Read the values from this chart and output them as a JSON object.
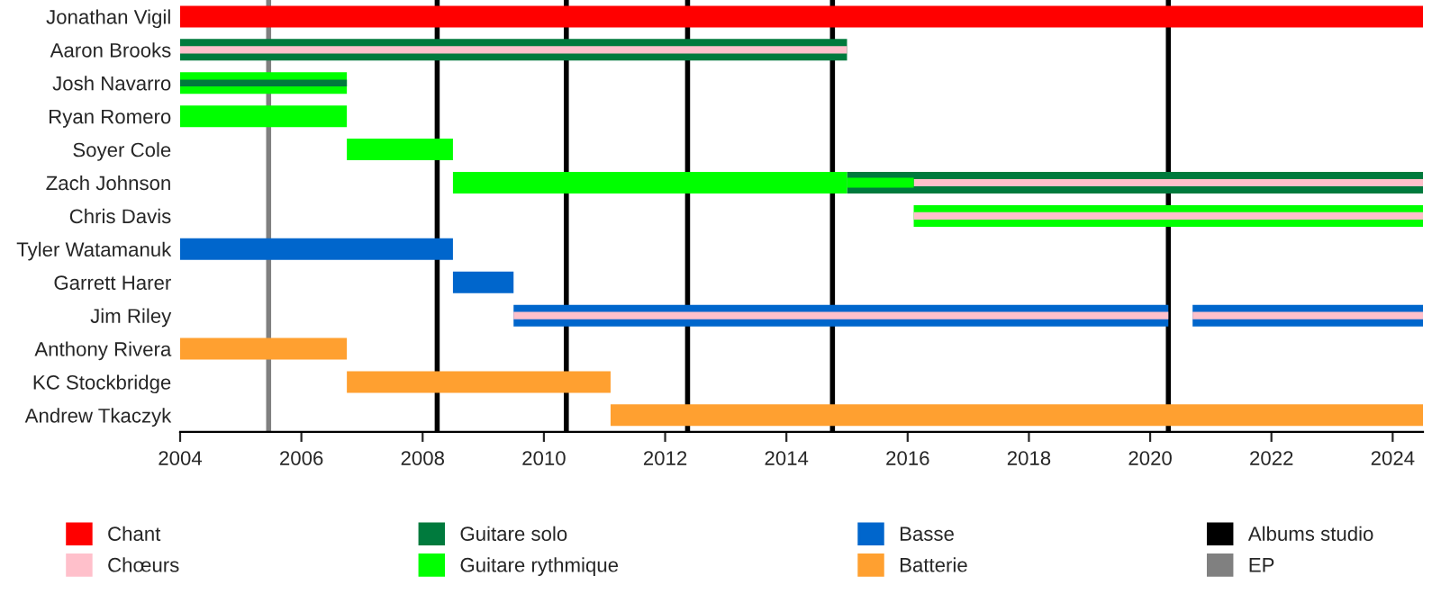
{
  "chart_data": {
    "type": "bar",
    "orientation": "horizontal",
    "categories": [
      "Jonathan Vigil",
      "Aaron Brooks",
      "Josh Navarro",
      "Ryan Romero",
      "Soyer Cole",
      "Zach Johnson",
      "Chris Davis",
      "Tyler Watamanuk",
      "Garrett Harer",
      "Jim Riley",
      "Anthony Rivera",
      "KC Stockbridge",
      "Andrew Tkaczyk"
    ],
    "series": [
      {
        "name": "Chant",
        "color": "#ff0000",
        "base": [
          2004,
          null,
          null,
          null,
          null,
          null,
          null,
          null,
          null,
          null,
          null,
          null,
          null
        ],
        "values": [
          20.5,
          null,
          null,
          null,
          null,
          null,
          null,
          null,
          null,
          null,
          null,
          null,
          null
        ]
      },
      {
        "name": "Chœurs",
        "color": "#ffc0cb",
        "base": [
          null,
          2004,
          null,
          null,
          null,
          2016.1,
          2016.1,
          null,
          null,
          2009.5,
          null,
          null,
          null
        ],
        "values": [
          null,
          11,
          null,
          null,
          null,
          8.4,
          8.4,
          null,
          null,
          10.8,
          null,
          null,
          null
        ]
      },
      {
        "name": "Guitare solo",
        "color": "#007a3d",
        "base": [
          null,
          2004,
          null,
          null,
          null,
          2015,
          null,
          null,
          null,
          null,
          null,
          null,
          null
        ],
        "values": [
          null,
          11,
          null,
          null,
          null,
          9.5,
          null,
          null,
          null,
          null,
          null,
          null,
          null
        ]
      },
      {
        "name": "Guitare rythmique",
        "color": "#00ff00",
        "base": [
          null,
          null,
          2004,
          2004,
          2006.75,
          2008.5,
          2016.1,
          null,
          null,
          null,
          null,
          null,
          null
        ],
        "values": [
          null,
          null,
          2.75,
          2.75,
          1.75,
          6.5,
          8.4,
          null,
          null,
          null,
          null,
          null,
          null
        ]
      },
      {
        "name": "Basse",
        "color": "#0066cc",
        "base": [
          null,
          null,
          null,
          null,
          null,
          null,
          null,
          2004,
          2008.5,
          2009.5,
          null,
          null,
          null
        ],
        "values": [
          null,
          null,
          null,
          null,
          null,
          null,
          null,
          4.5,
          1,
          10.8,
          null,
          null,
          null
        ]
      },
      {
        "name": "Batterie",
        "color": "#ffa030",
        "base": [
          null,
          null,
          null,
          null,
          null,
          null,
          null,
          null,
          null,
          null,
          2004,
          2006.75,
          2011.1
        ],
        "values": [
          null,
          null,
          null,
          null,
          null,
          null,
          null,
          null,
          null,
          null,
          2.75,
          4.35,
          13.4
        ]
      },
      {
        "color": "#007a3d",
        "base": [
          null,
          null,
          2004,
          null,
          null,
          null,
          null,
          null,
          null,
          null,
          null,
          null,
          null
        ],
        "values": [
          null,
          null,
          2.75,
          null,
          null,
          null,
          null,
          null,
          null,
          null,
          null,
          null,
          null
        ]
      },
      {
        "color": "#00ff00",
        "base": [
          null,
          null,
          null,
          null,
          null,
          2015,
          null,
          null,
          null,
          null,
          null,
          null,
          null
        ],
        "values": [
          null,
          null,
          null,
          null,
          null,
          1.1,
          null,
          null,
          null,
          null,
          null,
          null,
          null
        ]
      },
      {
        "color": "#0066cc",
        "base": [
          null,
          null,
          null,
          null,
          null,
          null,
          null,
          null,
          null,
          2020.7,
          null,
          null,
          null
        ],
        "values": [
          null,
          null,
          null,
          null,
          null,
          null,
          null,
          null,
          null,
          3.8,
          null,
          null,
          null
        ]
      },
      {
        "color": "#ffc0cb",
        "base": [
          null,
          null,
          null,
          null,
          null,
          null,
          null,
          null,
          null,
          2020.7,
          null,
          null,
          null
        ],
        "values": [
          null,
          null,
          null,
          null,
          null,
          null,
          null,
          null,
          null,
          3.8,
          null,
          null,
          null
        ]
      }
    ],
    "ref_lines": [
      {
        "axis": "x",
        "value": 2008.24,
        "label": "Albums studio",
        "color": "#000000"
      },
      {
        "axis": "x",
        "value": 2010.37,
        "color": "#000000"
      },
      {
        "axis": "x",
        "value": 2012.37,
        "color": "#000000"
      },
      {
        "axis": "x",
        "value": 2014.76,
        "color": "#000000"
      },
      {
        "axis": "x",
        "value": 2020.3,
        "color": "#000000"
      },
      {
        "axis": "x",
        "value": 2005.46,
        "label": "EP",
        "color": "#808080"
      }
    ],
    "xlim": [
      2004,
      2024.5
    ],
    "xticks": [
      2004,
      2006,
      2008,
      2010,
      2012,
      2014,
      2016,
      2018,
      2020,
      2022,
      2024
    ],
    "legend": "bottom",
    "grid": false
  }
}
